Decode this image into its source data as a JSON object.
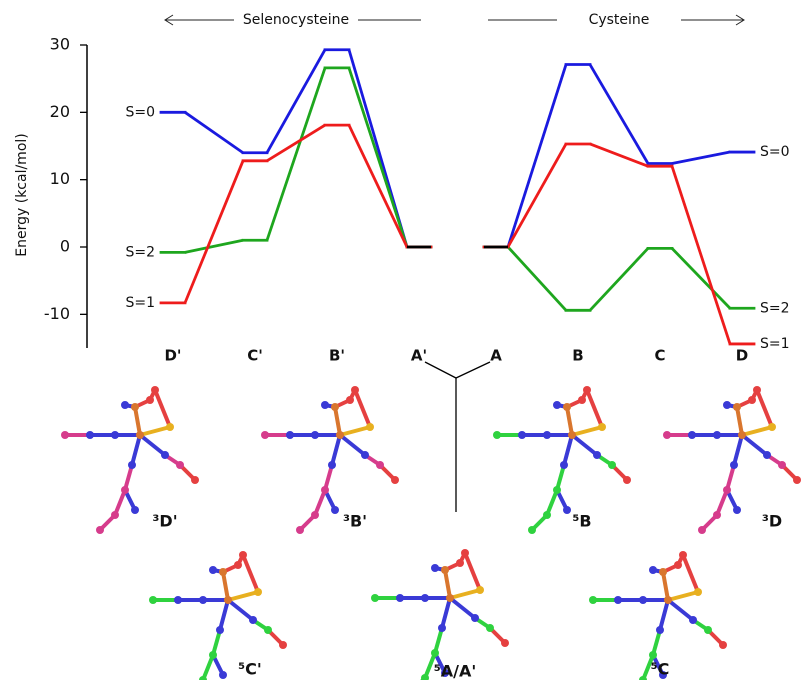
{
  "chart_data": {
    "type": "line",
    "y_label": "Energy (kcal/mol)",
    "ylim": [
      -15,
      30
    ],
    "yticks": [
      -10,
      0,
      10,
      20,
      30
    ],
    "groups": [
      {
        "name": "Selenocysteine",
        "categories": [
          "D'",
          "C'",
          "B'",
          "A'"
        ],
        "series": [
          {
            "name": "S=0",
            "color": "#1a1adf",
            "values": [
              20,
              14,
              29.3,
              0
            ]
          },
          {
            "name": "S=2",
            "color": "#1ea61e",
            "values": [
              -0.8,
              1,
              26.6,
              0
            ]
          },
          {
            "name": "S=1",
            "color": "#ee1c1c",
            "values": [
              -8.3,
              12.8,
              18.1,
              0
            ]
          }
        ]
      },
      {
        "name": "Cysteine",
        "categories": [
          "A",
          "B",
          "C",
          "D"
        ],
        "series": [
          {
            "name": "S=0",
            "color": "#1a1adf",
            "values": [
              0,
              27.1,
              12.4,
              14.1
            ]
          },
          {
            "name": "S=2",
            "color": "#1ea61e",
            "values": [
              0,
              -9.4,
              -0.2,
              -9.1
            ]
          },
          {
            "name": "S=1",
            "color": "#ee1c1c",
            "values": [
              0,
              15.3,
              12,
              -14.4
            ]
          }
        ]
      }
    ],
    "structures": [
      "³D'",
      "³B'",
      "⁵B",
      "³D",
      "⁵C'",
      "⁵A/A'",
      "⁵C"
    ]
  }
}
